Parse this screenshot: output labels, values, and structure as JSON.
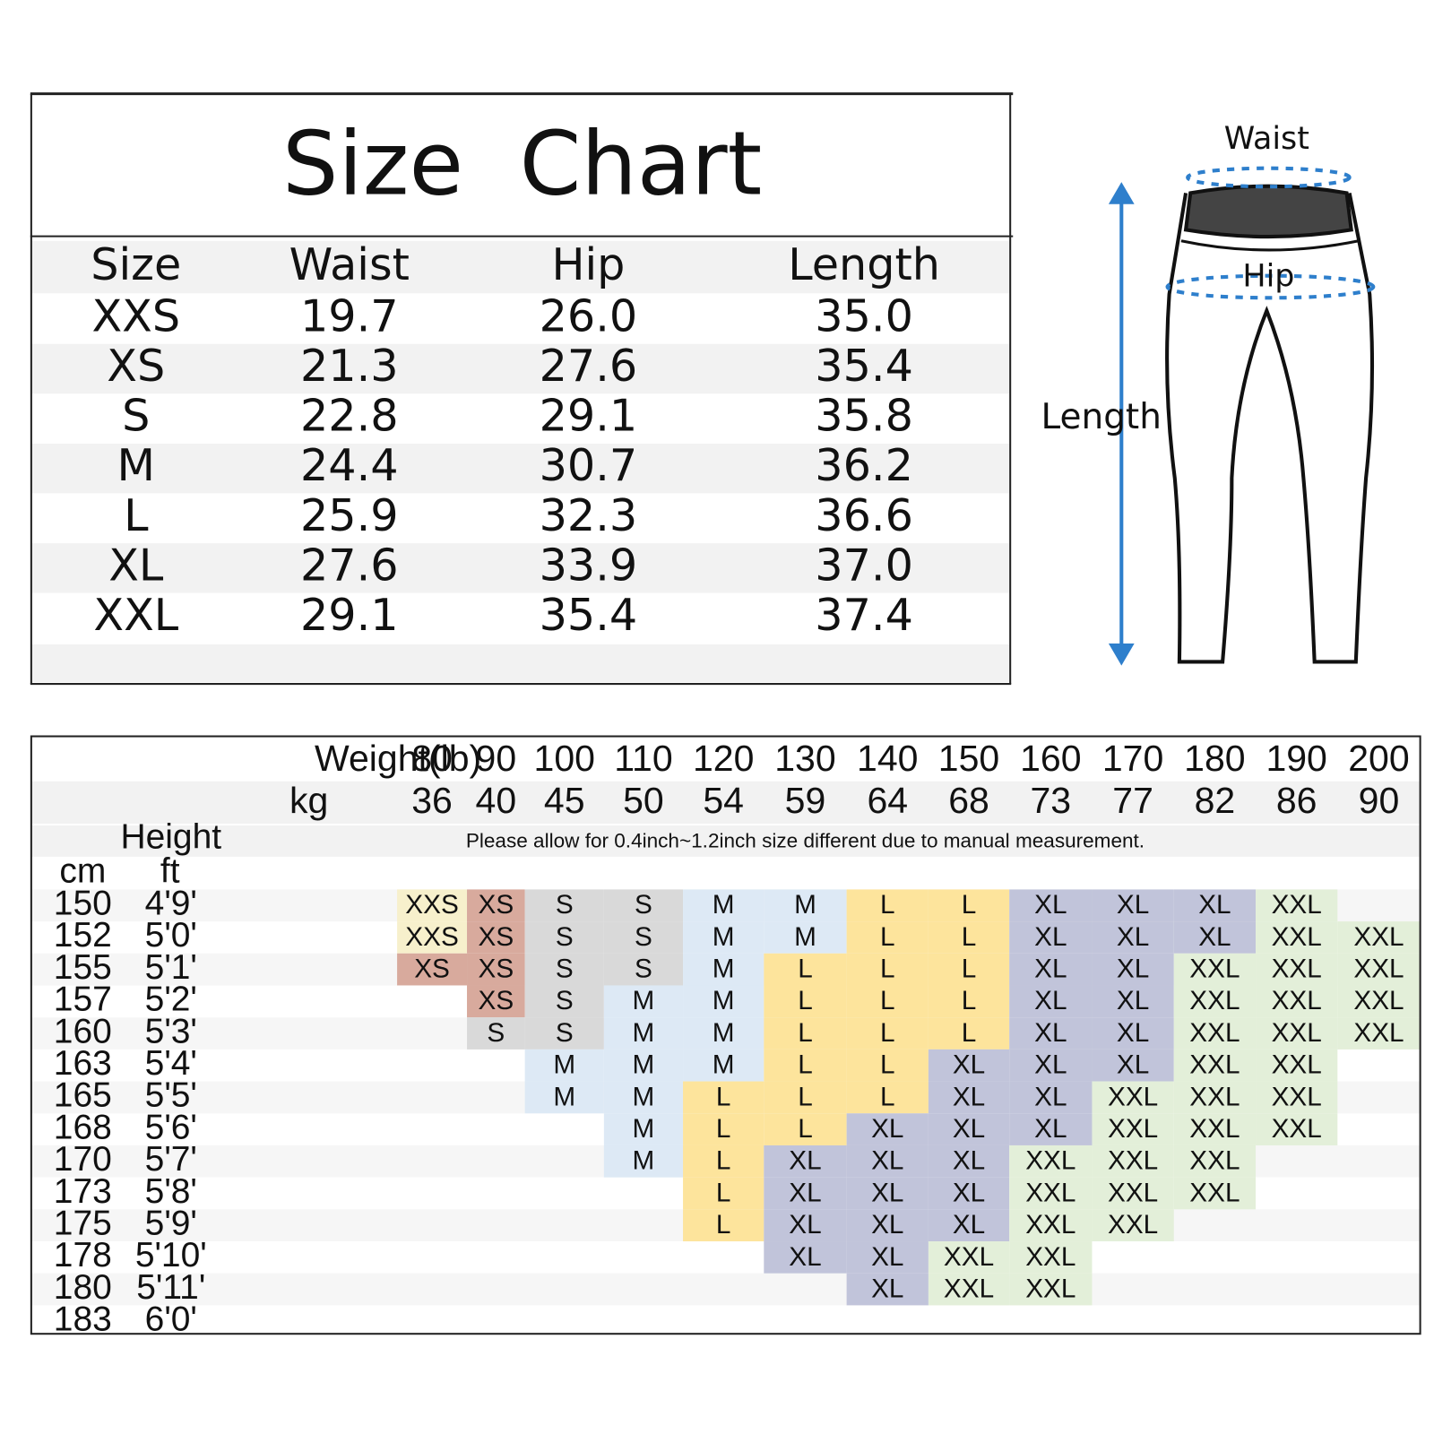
{
  "size_chart": {
    "title": "Size  Chart",
    "header": [
      "Size",
      "Waist",
      "Hip",
      "Length"
    ],
    "rows": [
      [
        "XXS",
        "19.7",
        "26.0",
        "35.0"
      ],
      [
        "XS",
        "21.3",
        "27.6",
        "35.4"
      ],
      [
        "S",
        "22.8",
        "29.1",
        "35.8"
      ],
      [
        "M",
        "24.4",
        "30.7",
        "36.2"
      ],
      [
        "L",
        "25.9",
        "32.3",
        "36.6"
      ],
      [
        "XL",
        "27.6",
        "33.9",
        "37.0"
      ],
      [
        "XXL",
        "29.1",
        "35.4",
        "37.4"
      ]
    ]
  },
  "diagram": {
    "waist": "Waist",
    "hip": "Hip",
    "length": "Length"
  },
  "fit_chart": {
    "weight_label": "Weight(lb)",
    "kg_label": "kg",
    "weights_lb": [
      "80",
      "90",
      "100",
      "110",
      "120",
      "130",
      "140",
      "150",
      "160",
      "170",
      "180",
      "190",
      "200"
    ],
    "weights_kg": [
      "36",
      "40",
      "45",
      "50",
      "54",
      "59",
      "64",
      "68",
      "73",
      "77",
      "82",
      "86",
      "90"
    ],
    "note": "Please allow for 0.4inch~1.2inch size different due to manual measurement.",
    "height_label": "Height",
    "cm_label": "cm",
    "ft_label": "ft",
    "colors": {
      "XXS": "#f7f0cc",
      "XS": "#d8aa9d",
      "S": "#d9d9d9",
      "M": "#dde9f5",
      "L": "#fde49c",
      "XL": "#c1c4da",
      "XXL": "#e3efd9"
    },
    "rows": [
      {
        "cm": "150",
        "ft": "4'9'",
        "sizes": [
          "XXS",
          "XS",
          "S",
          "S",
          "M",
          "M",
          "L",
          "L",
          "XL",
          "XL",
          "XL",
          "XXL",
          null
        ]
      },
      {
        "cm": "152",
        "ft": "5'0'",
        "sizes": [
          "XXS",
          "XS",
          "S",
          "S",
          "M",
          "M",
          "L",
          "L",
          "XL",
          "XL",
          "XL",
          "XXL",
          "XXL"
        ]
      },
      {
        "cm": "155",
        "ft": "5'1'",
        "sizes": [
          "XS",
          "XS",
          "S",
          "S",
          "M",
          "L",
          "L",
          "L",
          "XL",
          "XL",
          "XXL",
          "XXL",
          "XXL"
        ]
      },
      {
        "cm": "157",
        "ft": "5'2'",
        "sizes": [
          null,
          "XS",
          "S",
          "M",
          "M",
          "L",
          "L",
          "L",
          "XL",
          "XL",
          "XXL",
          "XXL",
          "XXL"
        ]
      },
      {
        "cm": "160",
        "ft": "5'3'",
        "sizes": [
          null,
          "S",
          "S",
          "M",
          "M",
          "L",
          "L",
          "L",
          "XL",
          "XL",
          "XXL",
          "XXL",
          "XXL"
        ]
      },
      {
        "cm": "163",
        "ft": "5'4'",
        "sizes": [
          null,
          null,
          "M",
          "M",
          "M",
          "L",
          "L",
          "XL",
          "XL",
          "XL",
          "XXL",
          "XXL",
          null
        ]
      },
      {
        "cm": "165",
        "ft": "5'5'",
        "sizes": [
          null,
          null,
          "M",
          "M",
          "L",
          "L",
          "L",
          "XL",
          "XL",
          "XXL",
          "XXL",
          "XXL",
          null
        ]
      },
      {
        "cm": "168",
        "ft": "5'6'",
        "sizes": [
          null,
          null,
          null,
          "M",
          "L",
          "L",
          "XL",
          "XL",
          "XL",
          "XXL",
          "XXL",
          "XXL",
          null
        ]
      },
      {
        "cm": "170",
        "ft": "5'7'",
        "sizes": [
          null,
          null,
          null,
          "M",
          "L",
          "XL",
          "XL",
          "XL",
          "XXL",
          "XXL",
          "XXL",
          null,
          null
        ]
      },
      {
        "cm": "173",
        "ft": "5'8'",
        "sizes": [
          null,
          null,
          null,
          null,
          "L",
          "XL",
          "XL",
          "XL",
          "XXL",
          "XXL",
          "XXL",
          null,
          null
        ]
      },
      {
        "cm": "175",
        "ft": "5'9'",
        "sizes": [
          null,
          null,
          null,
          null,
          "L",
          "XL",
          "XL",
          "XL",
          "XXL",
          "XXL",
          null,
          null,
          null
        ]
      },
      {
        "cm": "178",
        "ft": "5'10'",
        "sizes": [
          null,
          null,
          null,
          null,
          null,
          "XL",
          "XL",
          "XXL",
          "XXL",
          null,
          null,
          null,
          null
        ]
      },
      {
        "cm": "180",
        "ft": "5'11'",
        "sizes": [
          null,
          null,
          null,
          null,
          null,
          null,
          "XL",
          "XXL",
          "XXL",
          null,
          null,
          null,
          null
        ]
      },
      {
        "cm": "183",
        "ft": "6'0'",
        "sizes": [
          null,
          null,
          null,
          null,
          null,
          null,
          null,
          null,
          null,
          null,
          null,
          null,
          null
        ]
      }
    ]
  }
}
